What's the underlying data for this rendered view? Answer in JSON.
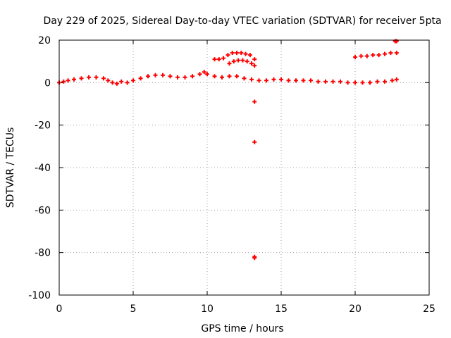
{
  "chart_data": {
    "type": "scatter",
    "title": "Day 229 of 2025, Sidereal Day-to-day VTEC variation (SDTVAR) for receiver 5pta",
    "xlabel": "GPS time / hours",
    "ylabel": "SDTVAR / TECUs",
    "xlim": [
      0,
      25
    ],
    "ylim": [
      -100,
      20
    ],
    "xticks": [
      0,
      5,
      10,
      15,
      20,
      25
    ],
    "yticks": [
      -100,
      -80,
      -60,
      -40,
      -20,
      0,
      20
    ],
    "grid": true,
    "marker": "plus",
    "color": "#ff0000",
    "series": [
      {
        "name": "main",
        "x": [
          0.0,
          0.3,
          0.6,
          1.0,
          1.5,
          2.0,
          2.5,
          3.0,
          3.3,
          3.6,
          3.9,
          4.2,
          4.6,
          5.0,
          5.5,
          6.0,
          6.5,
          7.0,
          7.5,
          8.0,
          8.5,
          9.0,
          9.5,
          9.8,
          10.0,
          10.5,
          11.0,
          11.5,
          12.0,
          12.5,
          13.0,
          13.5,
          14.0,
          14.5,
          15.0,
          15.5,
          16.0,
          16.5,
          17.0,
          17.5,
          18.0,
          18.5,
          19.0,
          19.5,
          20.0,
          20.5,
          21.0,
          21.5,
          22.0,
          22.5,
          22.8
        ],
        "y": [
          0.0,
          0.5,
          1.0,
          1.5,
          2.0,
          2.5,
          2.5,
          2.0,
          1.0,
          0.0,
          -0.5,
          0.5,
          0.0,
          1.0,
          2.0,
          3.0,
          3.5,
          3.5,
          3.0,
          2.5,
          2.5,
          3.0,
          4.0,
          5.0,
          4.0,
          3.0,
          2.5,
          3.0,
          3.0,
          2.0,
          1.5,
          1.0,
          1.0,
          1.5,
          1.5,
          1.0,
          1.0,
          1.0,
          1.0,
          0.5,
          0.5,
          0.5,
          0.5,
          0.0,
          0.0,
          0.0,
          0.0,
          0.5,
          0.5,
          1.0,
          1.5
        ]
      },
      {
        "name": "upper-segment-1",
        "x": [
          10.5,
          10.8,
          11.1,
          11.4,
          11.7,
          12.0,
          12.3,
          12.6,
          12.9,
          13.2
        ],
        "y": [
          11.0,
          11.0,
          11.5,
          13.0,
          14.0,
          14.0,
          14.0,
          13.5,
          13.0,
          11.0
        ]
      },
      {
        "name": "upper-segment-2",
        "x": [
          11.5,
          11.8,
          12.1,
          12.4,
          12.7,
          13.0,
          13.2
        ],
        "y": [
          9.0,
          10.0,
          10.5,
          10.5,
          10.0,
          9.0,
          8.0
        ]
      },
      {
        "name": "upper-segment-3",
        "x": [
          20.0,
          20.4,
          20.8,
          21.2,
          21.6,
          22.0,
          22.4,
          22.8
        ],
        "y": [
          12.0,
          12.5,
          12.5,
          13.0,
          13.0,
          13.5,
          14.0,
          14.0
        ]
      },
      {
        "name": "outliers",
        "x": [
          13.2,
          13.2,
          13.2,
          13.2,
          22.7,
          22.8
        ],
        "y": [
          -9.0,
          -28.0,
          -82.0,
          -82.5,
          19.5,
          19.5
        ]
      }
    ]
  }
}
